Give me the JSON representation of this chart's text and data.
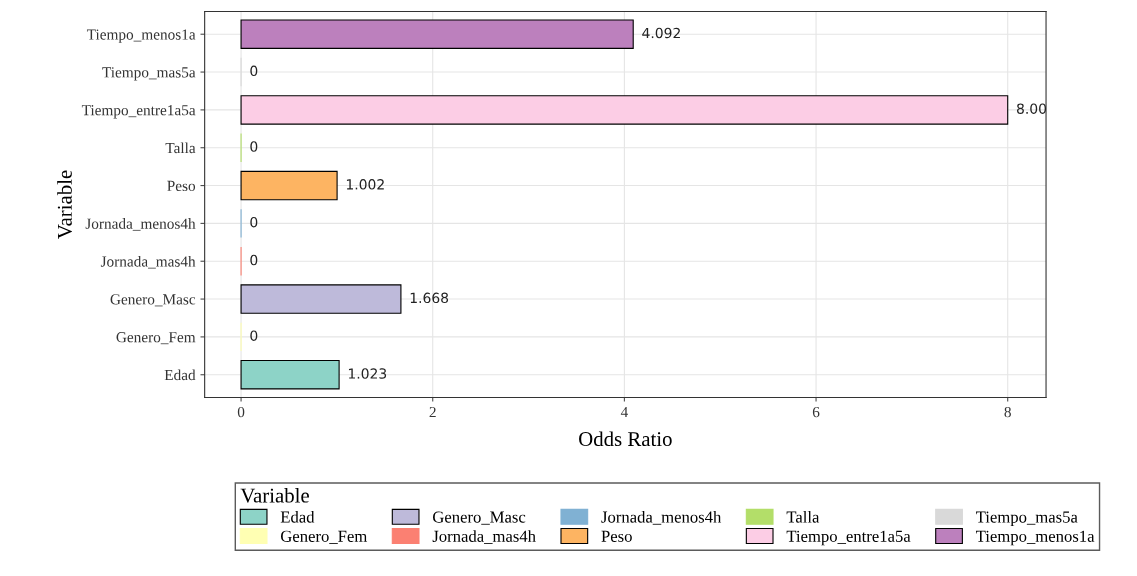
{
  "chart_data": {
    "type": "bar",
    "orientation": "horizontal",
    "xlabel": "Odds Ratio",
    "ylabel": "Variable",
    "legend_title": "Variable",
    "categories": [
      "Tiempo_menos1a",
      "Tiempo_mas5a",
      "Tiempo_entre1a5a",
      "Talla",
      "Peso",
      "Jornada_menos4h",
      "Jornada_mas4h",
      "Genero_Masc",
      "Genero_Fem",
      "Edad"
    ],
    "series": [
      {
        "name": "Edad",
        "color": "#8dd3c7",
        "values": [
          null,
          null,
          null,
          null,
          null,
          null,
          null,
          null,
          null,
          1.023
        ],
        "value_labels": [
          null,
          null,
          null,
          null,
          null,
          null,
          null,
          null,
          null,
          "1.023"
        ]
      },
      {
        "name": "Genero_Fem",
        "color": "#ffffb3",
        "values": [
          null,
          null,
          null,
          null,
          null,
          null,
          null,
          null,
          0,
          null
        ],
        "value_labels": [
          null,
          null,
          null,
          null,
          null,
          null,
          null,
          null,
          "0",
          null
        ]
      },
      {
        "name": "Genero_Masc",
        "color": "#bebada",
        "values": [
          null,
          null,
          null,
          null,
          null,
          null,
          null,
          1.668,
          null,
          null
        ],
        "value_labels": [
          null,
          null,
          null,
          null,
          null,
          null,
          null,
          "1.668",
          null,
          null
        ]
      },
      {
        "name": "Jornada_mas4h",
        "color": "#fb8072",
        "values": [
          null,
          null,
          null,
          null,
          null,
          null,
          0,
          null,
          null,
          null
        ],
        "value_labels": [
          null,
          null,
          null,
          null,
          null,
          null,
          "0",
          null,
          null,
          null
        ]
      },
      {
        "name": "Jornada_menos4h",
        "color": "#80b1d3",
        "values": [
          null,
          null,
          null,
          null,
          null,
          0,
          null,
          null,
          null,
          null
        ],
        "value_labels": [
          null,
          null,
          null,
          null,
          null,
          "0",
          null,
          null,
          null,
          null
        ]
      },
      {
        "name": "Peso",
        "color": "#fdb462",
        "values": [
          null,
          null,
          null,
          null,
          1.002,
          null,
          null,
          null,
          null,
          null
        ],
        "value_labels": [
          null,
          null,
          null,
          null,
          "1.002",
          null,
          null,
          null,
          null,
          null
        ]
      },
      {
        "name": "Talla",
        "color": "#b3de69",
        "values": [
          null,
          null,
          null,
          0,
          null,
          null,
          null,
          null,
          null,
          null
        ],
        "value_labels": [
          null,
          null,
          null,
          "0",
          null,
          null,
          null,
          null,
          null,
          null
        ]
      },
      {
        "name": "Tiempo_entre1a5a",
        "color": "#fccde5",
        "values": [
          null,
          null,
          8.0,
          null,
          null,
          null,
          null,
          null,
          null,
          null
        ],
        "value_labels": [
          null,
          null,
          "8.00",
          null,
          null,
          null,
          null,
          null,
          null,
          null
        ]
      },
      {
        "name": "Tiempo_mas5a",
        "color": "#d9d9d9",
        "values": [
          null,
          0,
          null,
          null,
          null,
          null,
          null,
          null,
          null,
          null
        ],
        "value_labels": [
          null,
          "0",
          null,
          null,
          null,
          null,
          null,
          null,
          null,
          null
        ]
      },
      {
        "name": "Tiempo_menos1a",
        "color": "#bc80bd",
        "values": [
          4.092,
          null,
          null,
          null,
          null,
          null,
          null,
          null,
          null,
          null
        ],
        "value_labels": [
          "4.092",
          null,
          null,
          null,
          null,
          null,
          null,
          null,
          null,
          null
        ]
      }
    ],
    "xlim": [
      -0.38,
      8.4
    ],
    "xticks": [
      0,
      2,
      4,
      6,
      8
    ],
    "grid": true,
    "legend": "bottom"
  }
}
